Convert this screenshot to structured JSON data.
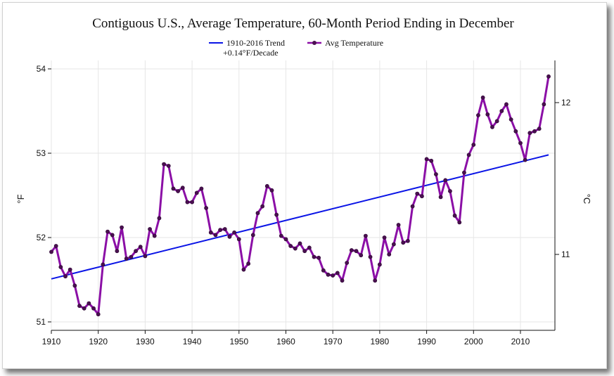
{
  "chart_data": {
    "type": "line",
    "title": "Contiguous U.S., Average Temperature, 60-Month Period Ending in December",
    "ylabel_left": "°F",
    "ylabel_right": "°C",
    "xlim": [
      1910,
      2016
    ],
    "ylim": [
      50.9,
      54.1
    ],
    "xticks": [
      "1910",
      "1920",
      "1930",
      "1940",
      "1950",
      "1960",
      "1970",
      "1980",
      "1990",
      "2000",
      "2010"
    ],
    "yticks_left": [
      "51",
      "52",
      "53",
      "54"
    ],
    "yticks_right": [
      "11",
      "12"
    ],
    "grid": true,
    "legend_position": "top",
    "series": [
      {
        "name": "Avg Temperature",
        "color": "#8b0fa6",
        "marker_color": "#4a1050",
        "x": [
          1910,
          1911,
          1912,
          1913,
          1914,
          1915,
          1916,
          1917,
          1918,
          1919,
          1920,
          1921,
          1922,
          1923,
          1924,
          1925,
          1926,
          1927,
          1928,
          1929,
          1930,
          1931,
          1932,
          1933,
          1934,
          1935,
          1936,
          1937,
          1938,
          1939,
          1940,
          1941,
          1942,
          1943,
          1944,
          1945,
          1946,
          1947,
          1948,
          1949,
          1950,
          1951,
          1952,
          1953,
          1954,
          1955,
          1956,
          1957,
          1958,
          1959,
          1960,
          1961,
          1962,
          1963,
          1964,
          1965,
          1966,
          1967,
          1968,
          1969,
          1970,
          1971,
          1972,
          1973,
          1974,
          1975,
          1976,
          1977,
          1978,
          1979,
          1980,
          1981,
          1982,
          1983,
          1984,
          1985,
          1986,
          1987,
          1988,
          1989,
          1990,
          1991,
          1992,
          1993,
          1994,
          1995,
          1996,
          1997,
          1998,
          1999,
          2000,
          2001,
          2002,
          2003,
          2004,
          2005,
          2006,
          2007,
          2008,
          2009,
          2010,
          2011,
          2012,
          2013,
          2014,
          2015,
          2016
        ],
        "y": [
          51.83,
          51.9,
          51.65,
          51.54,
          51.62,
          51.43,
          51.19,
          51.16,
          51.22,
          51.16,
          51.09,
          51.68,
          52.07,
          52.03,
          51.84,
          52.12,
          51.75,
          51.77,
          51.84,
          51.89,
          51.78,
          52.1,
          52.02,
          52.23,
          52.87,
          52.85,
          52.58,
          52.55,
          52.59,
          52.42,
          52.42,
          52.53,
          52.58,
          52.35,
          52.06,
          52.03,
          52.09,
          52.1,
          52.01,
          52.06,
          51.98,
          51.62,
          51.69,
          52.03,
          52.29,
          52.37,
          52.61,
          52.56,
          52.27,
          52.02,
          51.98,
          51.9,
          51.87,
          51.93,
          51.84,
          51.88,
          51.77,
          51.76,
          51.61,
          51.56,
          51.55,
          51.58,
          51.49,
          51.7,
          51.85,
          51.84,
          51.79,
          52.02,
          51.77,
          51.49,
          51.68,
          52.0,
          51.8,
          51.92,
          52.15,
          51.94,
          51.96,
          52.37,
          52.52,
          52.49,
          52.93,
          52.91,
          52.75,
          52.48,
          52.68,
          52.55,
          52.26,
          52.18,
          52.77,
          52.98,
          53.1,
          53.45,
          53.66,
          53.46,
          53.31,
          53.38,
          53.5,
          53.58,
          53.4,
          53.26,
          53.12,
          52.92,
          53.24,
          53.26,
          53.29,
          53.58,
          53.91
        ]
      },
      {
        "name": "1910-2016 Trend",
        "name_line2": "+0.14°F/Decade",
        "color": "#0a14e6",
        "x": [
          1910,
          2016
        ],
        "y": [
          51.51,
          52.98
        ]
      }
    ]
  }
}
